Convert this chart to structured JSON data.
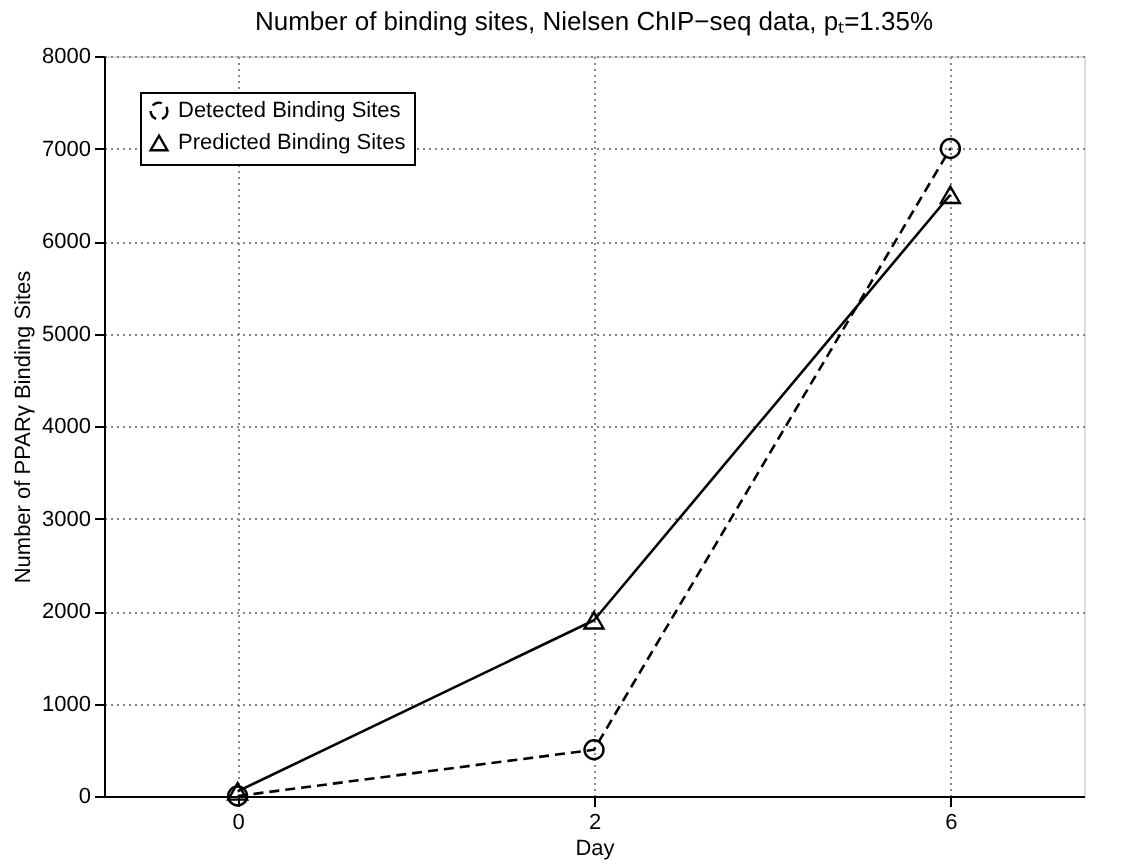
{
  "chart_data": {
    "type": "line",
    "title": "Number of binding sites, Nielsen ChIP−seq data, pₜ=1.35%",
    "xlabel": "Day",
    "ylabel": "Number of PPARγ Binding Sites",
    "categories": [
      "0",
      "2",
      "6"
    ],
    "series": [
      {
        "name": "Detected Binding Sites",
        "color": "#000000",
        "values": [
          0,
          500,
          7000
        ],
        "marker": "circle",
        "line_style": "dashed"
      },
      {
        "name": "Predicted Binding Sites",
        "color": "#000000",
        "values": [
          50,
          1900,
          6500
        ],
        "marker": "triangle",
        "line_style": "solid"
      }
    ],
    "ylim": [
      0,
      8000
    ],
    "yticks": [
      0,
      1000,
      2000,
      3000,
      4000,
      5000,
      6000,
      7000,
      8000
    ],
    "grid": true,
    "legend": "top left"
  }
}
